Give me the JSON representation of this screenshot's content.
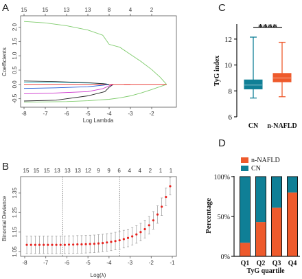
{
  "colors": {
    "teal": "#0f7f96",
    "orange": "#ee5a2c",
    "green": "#7ecb6b",
    "red": "#e8231f",
    "grey": "#9a9a9a"
  },
  "chart_data": [
    {
      "panel": "A",
      "type": "line",
      "xlabel": "Log Lambda",
      "ylabel": "Coefficients",
      "xlim": [
        -8,
        -1
      ],
      "ylim": [
        -0.7,
        2.3
      ],
      "xticks": [
        "-8",
        "-7",
        "-6",
        "-5",
        "-4",
        "-3",
        "-2"
      ],
      "yticks": [
        "-0.5",
        "0.0",
        "0.5",
        "1.0",
        "1.5",
        "2.0"
      ],
      "top_ticks": [
        "15",
        "15",
        "13",
        "13",
        "8",
        "4",
        "2"
      ],
      "top_tick_x": [
        -8,
        -7,
        -6,
        -5,
        -4,
        -3,
        -2
      ],
      "series": [
        {
          "color": "#7ecb6b",
          "x": [
            -8,
            -7,
            -6,
            -5,
            -4.3,
            -4.0,
            -3.5,
            -3,
            -2.5,
            -2,
            -1.6,
            -1.3
          ],
          "y": [
            2.2,
            2.15,
            2.05,
            1.9,
            1.72,
            1.4,
            1.3,
            1.05,
            0.8,
            0.52,
            0.25,
            0.0
          ]
        },
        {
          "color": "#7ecb6b",
          "x": [
            -8,
            -6,
            -5,
            -4,
            -3.5,
            -3,
            -2.5,
            -2,
            -1.5,
            -1.3
          ],
          "y": [
            -0.62,
            -0.6,
            -0.57,
            -0.52,
            -0.47,
            -0.4,
            -0.3,
            -0.18,
            -0.05,
            0.0
          ]
        },
        {
          "color": "#222222",
          "x": [
            -8,
            -6.5,
            -5,
            -4.2,
            -4.0,
            -3.8
          ],
          "y": [
            -0.58,
            -0.55,
            -0.4,
            -0.25,
            -0.1,
            0.0
          ]
        },
        {
          "color": "#cc33cc",
          "x": [
            -8,
            -6.5,
            -5,
            -4.3,
            -4.0,
            -3.8
          ],
          "y": [
            -0.33,
            -0.3,
            -0.25,
            -0.15,
            -0.05,
            0.0
          ]
        },
        {
          "color": "#e8231f",
          "x": [
            -8,
            -6.5,
            -5,
            -4,
            -3
          ],
          "y": [
            0.0,
            0.0,
            0.0,
            0.0,
            0.0
          ]
        },
        {
          "color": "#1e56d6",
          "x": [
            -8,
            -6.5,
            -5,
            -4.3,
            -4.0
          ],
          "y": [
            -0.14,
            -0.12,
            -0.08,
            -0.03,
            0.0
          ]
        },
        {
          "color": "#2fb8c8",
          "x": [
            -8,
            -6.5,
            -5,
            -4.3,
            -4.0
          ],
          "y": [
            0.08,
            0.07,
            0.05,
            0.03,
            0.0
          ]
        },
        {
          "color": "#333333",
          "x": [
            -8,
            -6.5,
            -5,
            -4.2,
            -4.0
          ],
          "y": [
            0.12,
            0.1,
            0.06,
            0.02,
            0.0
          ]
        },
        {
          "color": "#e8231f",
          "x": [
            -3.3,
            -2.5,
            -2.0,
            -1.3
          ],
          "y": [
            0.0,
            0.0,
            0.0,
            0.0
          ]
        }
      ]
    },
    {
      "panel": "B",
      "type": "scatter",
      "xlabel": "Log(λ)",
      "ylabel": "Binomial Deviance",
      "xlim": [
        -8,
        -1
      ],
      "ylim": [
        1.04,
        1.42
      ],
      "xticks": [
        "-8",
        "-7",
        "-6",
        "-5",
        "-4",
        "-3",
        "-2",
        "-1"
      ],
      "yticks": [
        "1.05",
        "1.15",
        "1.25",
        "1.35"
      ],
      "top_ticks": [
        "15",
        "15",
        "15",
        "13",
        "13",
        "13",
        "12",
        "9",
        "9",
        "6",
        "4",
        "4",
        "2",
        "1",
        "1"
      ],
      "vlines": [
        -6.2,
        -3.5
      ],
      "points_x": [
        -7.9,
        -7.7,
        -7.5,
        -7.3,
        -7.1,
        -6.9,
        -6.7,
        -6.5,
        -6.3,
        -6.1,
        -5.9,
        -5.7,
        -5.5,
        -5.3,
        -5.1,
        -4.9,
        -4.7,
        -4.5,
        -4.3,
        -4.1,
        -3.9,
        -3.7,
        -3.5,
        -3.3,
        -3.1,
        -2.9,
        -2.7,
        -2.5,
        -2.3,
        -2.1,
        -1.9,
        -1.7,
        -1.5,
        -1.3,
        -1.1
      ],
      "points_y": [
        1.085,
        1.085,
        1.085,
        1.085,
        1.085,
        1.085,
        1.085,
        1.085,
        1.085,
        1.085,
        1.086,
        1.086,
        1.087,
        1.087,
        1.088,
        1.089,
        1.09,
        1.092,
        1.094,
        1.097,
        1.1,
        1.104,
        1.108,
        1.114,
        1.12,
        1.128,
        1.138,
        1.15,
        1.165,
        1.185,
        1.21,
        1.24,
        1.28,
        1.33,
        1.385
      ],
      "error_low": [
        1.04,
        1.04,
        1.04,
        1.04,
        1.04,
        1.04,
        1.04,
        1.04,
        1.04,
        1.04,
        1.04,
        1.041,
        1.042,
        1.042,
        1.043,
        1.044,
        1.045,
        1.047,
        1.049,
        1.052,
        1.055,
        1.059,
        1.063,
        1.069,
        1.075,
        1.083,
        1.093,
        1.105,
        1.12,
        1.14,
        1.165,
        1.195,
        1.235,
        1.285,
        1.34
      ],
      "error_high": [
        1.13,
        1.13,
        1.13,
        1.13,
        1.13,
        1.13,
        1.13,
        1.13,
        1.13,
        1.13,
        1.131,
        1.131,
        1.132,
        1.132,
        1.133,
        1.134,
        1.135,
        1.137,
        1.139,
        1.142,
        1.145,
        1.149,
        1.153,
        1.159,
        1.165,
        1.173,
        1.183,
        1.195,
        1.21,
        1.23,
        1.255,
        1.285,
        1.325,
        1.375,
        1.43
      ]
    },
    {
      "panel": "C",
      "type": "box",
      "ylabel": "TyG index",
      "ylim": [
        6,
        13
      ],
      "yticks": [
        "6",
        "8",
        "10",
        "12"
      ],
      "categories": [
        "CN",
        "n-NAFLD"
      ],
      "colors": [
        "#0f7f96",
        "#ee5a2c"
      ],
      "boxes": [
        {
          "min": 7.45,
          "q1": 8.15,
          "median": 8.45,
          "q3": 8.85,
          "max": 12.15
        },
        {
          "min": 7.55,
          "q1": 8.7,
          "median": 9.0,
          "q3": 9.35,
          "max": 11.75
        }
      ],
      "significance": "****"
    },
    {
      "panel": "D",
      "type": "bar",
      "stacked": true,
      "xlabel": "TyG quartile",
      "ylabel": "Percentage",
      "categories": [
        "Q1",
        "Q2",
        "Q3",
        "Q4"
      ],
      "yticks": [
        "0%",
        "50%",
        "100%"
      ],
      "legend": [
        "n-NAFLD",
        "CN"
      ],
      "legend_position": "top",
      "series": [
        {
          "name": "n-NAFLD",
          "color": "#ee5a2c",
          "values": [
            17,
            43,
            61,
            80
          ]
        },
        {
          "name": "CN",
          "color": "#0f7f96",
          "values": [
            83,
            57,
            39,
            20
          ]
        }
      ]
    }
  ]
}
